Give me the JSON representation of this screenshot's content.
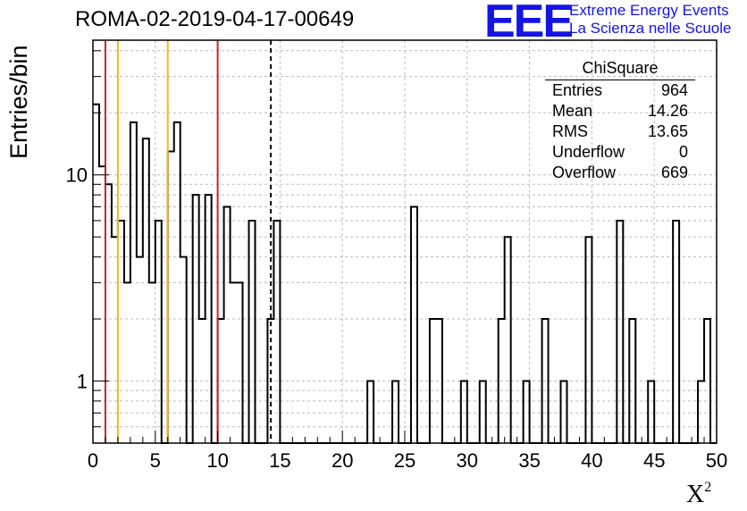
{
  "header": {
    "run_id": "ROMA-02-2019-04-17-00649",
    "logo_text": "EEE",
    "org_line1": "Extreme Energy Events",
    "org_line2": "La Scienza nelle Scuole"
  },
  "colors": {
    "logo": "#1414e6",
    "org_text": "#1414e6",
    "histogram": "#000000",
    "marker_red": "#d42020",
    "marker_orange": "#f0b818",
    "grid": "#bbbbbb"
  },
  "stats": {
    "title": "ChiSquare",
    "rows": [
      {
        "label": "Entries",
        "value": "964"
      },
      {
        "label": "Mean",
        "value": "14.26"
      },
      {
        "label": "RMS",
        "value": "13.65"
      },
      {
        "label": "Underflow",
        "value": "0"
      },
      {
        "label": "Overflow",
        "value": "669"
      }
    ]
  },
  "chart_data": {
    "type": "histogram",
    "xlabel": "X²",
    "ylabel": "Entries/bin",
    "xlim": [
      0,
      50
    ],
    "ylim": [
      0.5,
      45
    ],
    "yscale": "log",
    "grid": true,
    "bin_width": 0.5,
    "bin_start": 0,
    "x_ticks": [
      0,
      5,
      10,
      15,
      20,
      25,
      30,
      35,
      40,
      45,
      50
    ],
    "y_tick_labels": [
      {
        "value": 1,
        "label": "1"
      },
      {
        "value": 10,
        "label": "10"
      }
    ],
    "values": [
      22,
      11,
      9,
      5,
      6,
      3,
      18,
      4,
      15,
      3,
      6,
      0,
      13,
      18,
      4,
      0,
      8,
      2,
      8,
      0,
      2,
      7,
      3,
      3,
      0,
      6,
      0,
      0,
      2,
      6,
      0,
      0,
      0,
      0,
      0,
      0,
      0,
      0,
      0,
      0,
      0,
      0,
      0,
      0,
      1,
      0,
      0,
      0,
      1,
      0,
      0,
      7,
      0,
      0,
      2,
      2,
      0,
      0,
      0,
      1,
      0,
      0,
      1,
      0,
      0,
      2,
      5,
      0,
      0,
      1,
      0,
      0,
      2,
      0,
      0,
      1,
      0,
      0,
      0,
      5,
      0,
      0,
      0,
      0,
      6,
      0,
      2,
      0,
      0,
      1,
      0,
      0,
      0,
      6,
      0,
      0,
      0,
      1,
      2,
      0
    ],
    "reference_lines": [
      {
        "x": 1,
        "style": "solid",
        "color": "red"
      },
      {
        "x": 2,
        "style": "solid",
        "color": "orange"
      },
      {
        "x": 6,
        "style": "solid",
        "color": "orange"
      },
      {
        "x": 10,
        "style": "solid",
        "color": "red"
      },
      {
        "x": 14.26,
        "style": "dashed",
        "color": "black"
      }
    ]
  }
}
